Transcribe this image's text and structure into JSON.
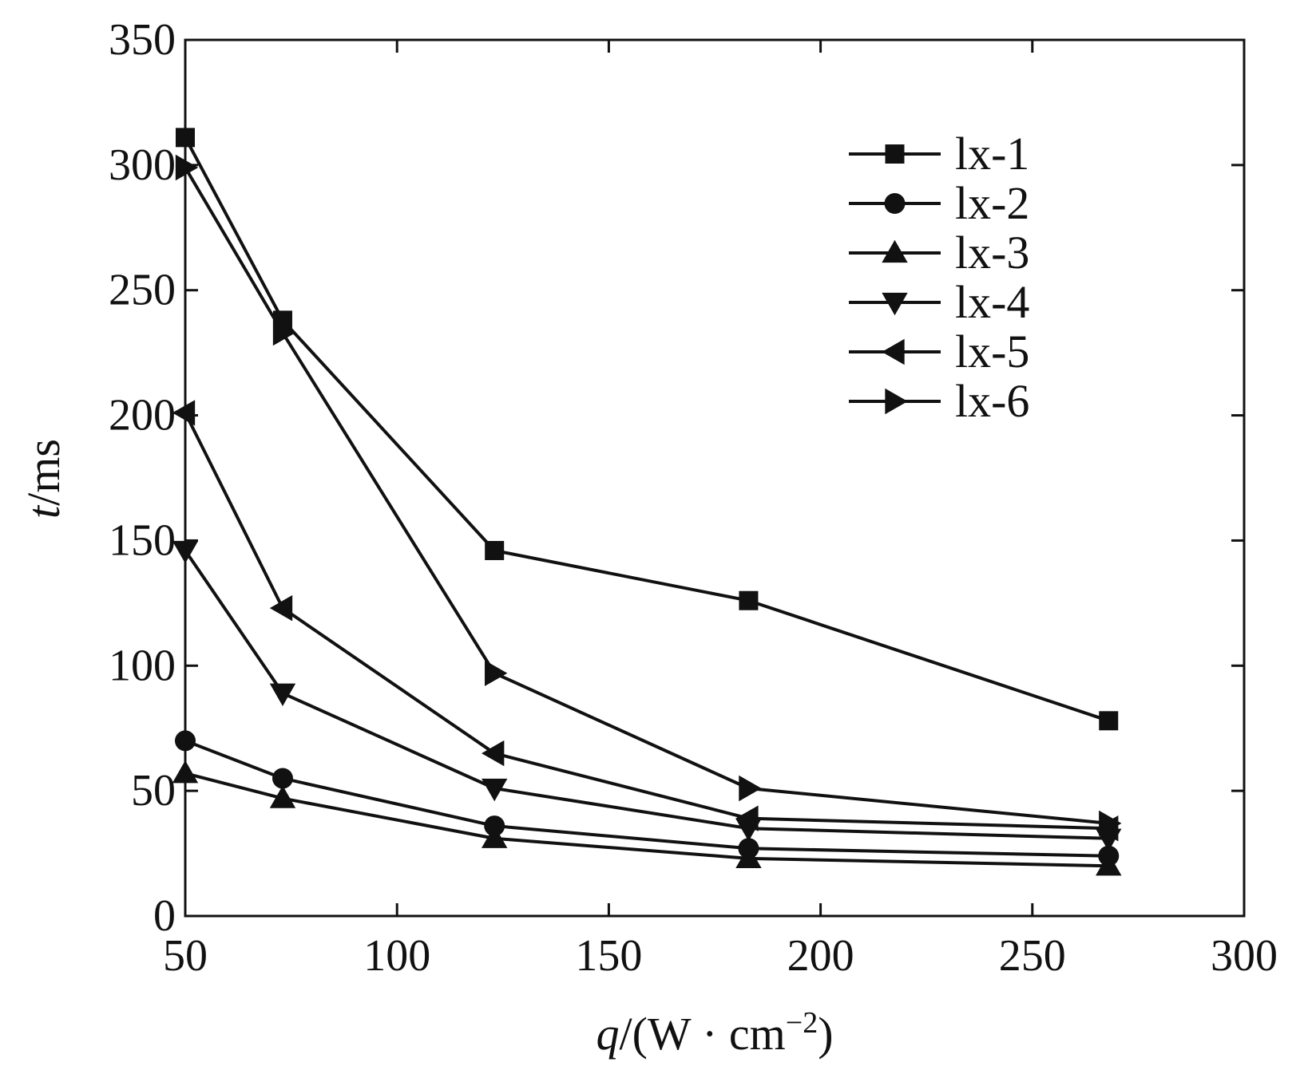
{
  "chart_data": {
    "type": "line",
    "xlabel": {
      "var": "q",
      "unit": "/(W · cm",
      "sup": "−2",
      "close": ")"
    },
    "ylabel": {
      "var": "t",
      "unit": "/ms"
    },
    "xlim": [
      50,
      300
    ],
    "ylim": [
      0,
      350
    ],
    "xticks": [
      50,
      100,
      150,
      200,
      250,
      300
    ],
    "yticks": [
      0,
      50,
      100,
      150,
      200,
      250,
      300,
      350
    ],
    "x": [
      50,
      73,
      123,
      183,
      268
    ],
    "grid": false,
    "legend_position": "top-right",
    "series": [
      {
        "name": "lx-1",
        "marker": "square",
        "values": [
          311,
          238,
          146,
          126,
          78
        ]
      },
      {
        "name": "lx-2",
        "marker": "circle",
        "values": [
          70,
          55,
          36,
          27,
          24
        ]
      },
      {
        "name": "lx-3",
        "marker": "triangle-up",
        "values": [
          57,
          47,
          31,
          23,
          20
        ]
      },
      {
        "name": "lx-4",
        "marker": "triangle-down",
        "values": [
          146,
          89,
          51,
          35,
          31
        ]
      },
      {
        "name": "lx-5",
        "marker": "triangle-left",
        "values": [
          201,
          123,
          65,
          39,
          35
        ]
      },
      {
        "name": "lx-6",
        "marker": "triangle-right",
        "values": [
          299,
          233,
          97,
          51,
          37
        ]
      }
    ]
  }
}
